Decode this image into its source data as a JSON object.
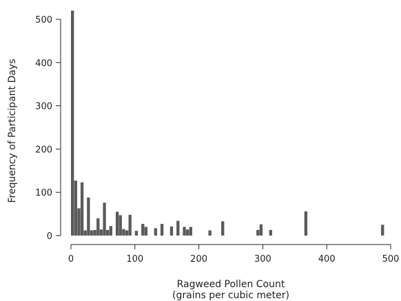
{
  "chart_data": {
    "type": "bar",
    "title": "",
    "xlabel": "Ragweed Pollen Count",
    "xlabel_sub": "(grains per cubic meter)",
    "ylabel": "Frequency of Participant Days",
    "xlim": [
      0,
      500
    ],
    "ylim": [
      0,
      500
    ],
    "xticks": [
      0,
      100,
      200,
      300,
      400,
      500
    ],
    "yticks": [
      0,
      100,
      200,
      300,
      400,
      500
    ],
    "bin_width": 5,
    "bar_color": "#5a5a5a",
    "grid": false,
    "bins": [
      {
        "x0": 0,
        "x1": 5,
        "count": 520
      },
      {
        "x0": 5,
        "x1": 10,
        "count": 127
      },
      {
        "x0": 10,
        "x1": 15,
        "count": 63
      },
      {
        "x0": 15,
        "x1": 20,
        "count": 123
      },
      {
        "x0": 20,
        "x1": 25,
        "count": 12
      },
      {
        "x0": 25,
        "x1": 30,
        "count": 88
      },
      {
        "x0": 30,
        "x1": 35,
        "count": 12
      },
      {
        "x0": 35,
        "x1": 40,
        "count": 13
      },
      {
        "x0": 40,
        "x1": 45,
        "count": 40
      },
      {
        "x0": 45,
        "x1": 50,
        "count": 14
      },
      {
        "x0": 50,
        "x1": 55,
        "count": 76
      },
      {
        "x0": 55,
        "x1": 60,
        "count": 13
      },
      {
        "x0": 60,
        "x1": 65,
        "count": 22
      },
      {
        "x0": 70,
        "x1": 75,
        "count": 55
      },
      {
        "x0": 75,
        "x1": 80,
        "count": 47
      },
      {
        "x0": 80,
        "x1": 85,
        "count": 15
      },
      {
        "x0": 85,
        "x1": 90,
        "count": 12
      },
      {
        "x0": 90,
        "x1": 95,
        "count": 48
      },
      {
        "x0": 100,
        "x1": 105,
        "count": 11
      },
      {
        "x0": 110,
        "x1": 115,
        "count": 27
      },
      {
        "x0": 115,
        "x1": 120,
        "count": 20
      },
      {
        "x0": 130,
        "x1": 135,
        "count": 17
      },
      {
        "x0": 140,
        "x1": 145,
        "count": 27
      },
      {
        "x0": 155,
        "x1": 160,
        "count": 21
      },
      {
        "x0": 165,
        "x1": 170,
        "count": 34
      },
      {
        "x0": 175,
        "x1": 180,
        "count": 20
      },
      {
        "x0": 180,
        "x1": 185,
        "count": 14
      },
      {
        "x0": 185,
        "x1": 190,
        "count": 20
      },
      {
        "x0": 215,
        "x1": 220,
        "count": 12
      },
      {
        "x0": 235,
        "x1": 240,
        "count": 33
      },
      {
        "x0": 290,
        "x1": 295,
        "count": 13
      },
      {
        "x0": 295,
        "x1": 300,
        "count": 26
      },
      {
        "x0": 310,
        "x1": 315,
        "count": 13
      },
      {
        "x0": 365,
        "x1": 370,
        "count": 56
      },
      {
        "x0": 485,
        "x1": 490,
        "count": 25
      }
    ]
  }
}
